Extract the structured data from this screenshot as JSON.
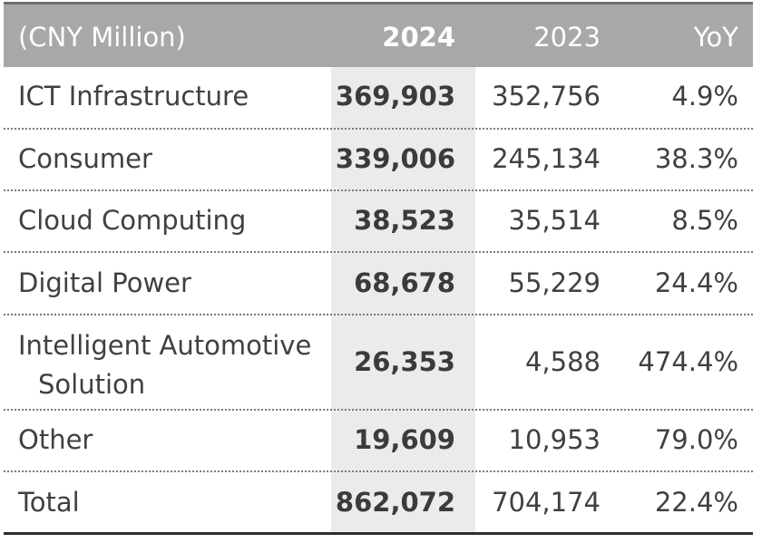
{
  "header": {
    "unit_label": "(CNY Million)",
    "col_2024": "2024",
    "col_2023": "2023",
    "col_yoy": "YoY"
  },
  "rows": [
    {
      "label": "ICT Infrastructure",
      "v2024": "369,903",
      "v2023": "352,756",
      "yoy": "4.9%"
    },
    {
      "label": "Consumer",
      "v2024": "339,006",
      "v2023": "245,134",
      "yoy": "38.3%"
    },
    {
      "label": "Cloud Computing",
      "v2024": "38,523",
      "v2023": "35,514",
      "yoy": "8.5%"
    },
    {
      "label": "Digital Power",
      "v2024": "68,678",
      "v2023": "55,229",
      "yoy": "24.4%"
    },
    {
      "label_line1": "Intelligent Automotive",
      "label_line2": "Solution",
      "v2024": "26,353",
      "v2023": "4,588",
      "yoy": "474.4%"
    },
    {
      "label": "Other",
      "v2024": "19,609",
      "v2023": "10,953",
      "yoy": "79.0%"
    },
    {
      "label": "Total",
      "v2024": "862,072",
      "v2023": "704,174",
      "yoy": "22.4%"
    }
  ],
  "colors": {
    "header_bg": "#a7a8aa",
    "header_text": "#ffffff",
    "highlight_col_bg": "#ebebeb",
    "body_text": "#404040"
  }
}
